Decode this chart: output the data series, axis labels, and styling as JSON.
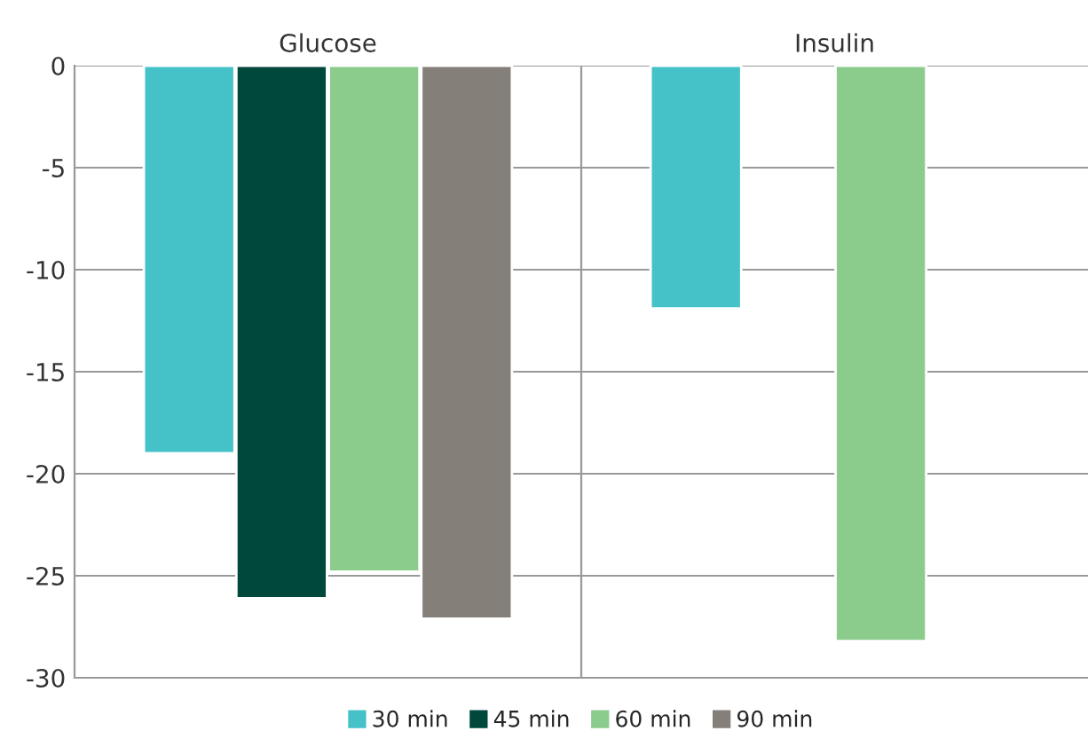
{
  "chart_data": {
    "type": "bar",
    "categories": [
      "Glucose",
      "Insulin"
    ],
    "series": [
      {
        "name": "30 min",
        "color": "#45c1c8",
        "values": [
          -19,
          -11.9
        ]
      },
      {
        "name": "45 min",
        "color": "#00473c",
        "values": [
          -26.1,
          null
        ]
      },
      {
        "name": "60 min",
        "color": "#8bcb8c",
        "values": [
          -24.8,
          -28.2
        ]
      },
      {
        "name": "90 min",
        "color": "#857f7a",
        "values": [
          -27.1,
          null
        ]
      }
    ],
    "ylim": [
      -30,
      0
    ],
    "yticks": [
      0,
      -5,
      -10,
      -15,
      -20,
      -25,
      -30
    ],
    "grid": "y",
    "legend": "bottom"
  }
}
